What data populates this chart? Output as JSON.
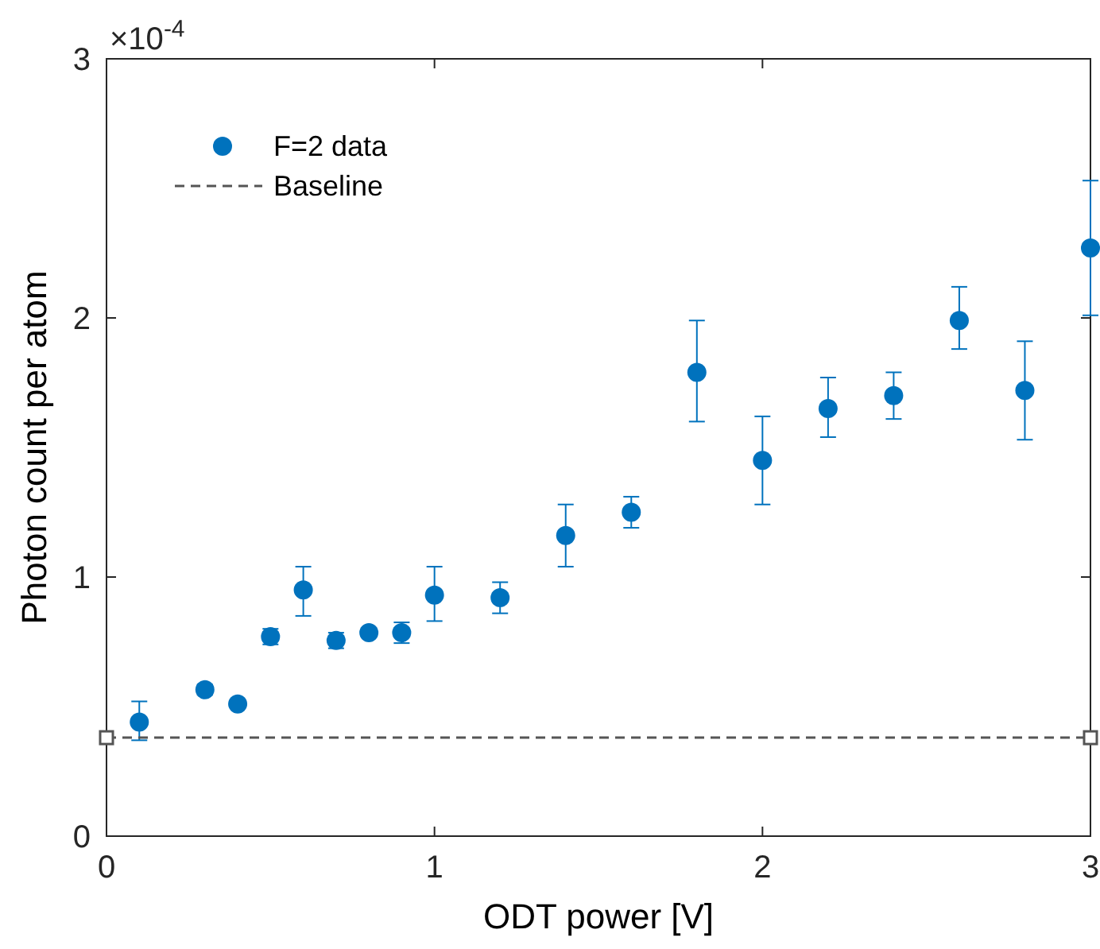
{
  "chart_data": {
    "type": "scatter",
    "xlabel": "ODT power [V]",
    "ylabel": "Photon count per atom",
    "annotations": [
      "×10$^{-4}$"
    ],
    "xlim": [
      0,
      3
    ],
    "xticks": [
      0,
      1,
      2,
      3
    ],
    "ylim": [
      0,
      3
    ],
    "yticks": [
      0,
      1,
      2,
      3
    ],
    "grid": false,
    "legend": "top left",
    "marker": "circle",
    "series": [
      {
        "name": "F=2 data",
        "color": "#0072bd",
        "x": [
          0.1,
          0.3,
          0.4,
          0.5,
          0.6,
          0.7,
          0.8,
          0.9,
          1.0,
          1.2,
          1.4,
          1.6,
          1.8,
          2.0,
          2.2,
          2.4,
          2.6,
          2.8,
          3.0
        ],
        "values": [
          0.44,
          0.565,
          0.51,
          0.77,
          0.95,
          0.755,
          0.785,
          0.785,
          0.93,
          0.92,
          1.16,
          1.25,
          1.79,
          1.45,
          1.65,
          1.7,
          1.99,
          1.72,
          2.27
        ],
        "errors": [
          [
            0.37,
            0.52
          ],
          [
            0.545,
            0.585
          ],
          null,
          [
            0.74,
            0.8
          ],
          [
            0.85,
            1.04
          ],
          [
            0.725,
            0.785
          ],
          null,
          [
            0.745,
            0.825
          ],
          [
            0.83,
            1.04
          ],
          [
            0.86,
            0.98
          ],
          [
            1.04,
            1.28
          ],
          [
            1.19,
            1.31
          ],
          [
            1.6,
            1.99
          ],
          [
            1.28,
            1.62
          ],
          [
            1.54,
            1.77
          ],
          [
            1.61,
            1.79
          ],
          [
            1.88,
            2.12
          ],
          [
            1.53,
            1.91
          ],
          [
            2.01,
            2.53
          ]
        ]
      },
      {
        "name": "Baseline",
        "color": "#555555",
        "type": "line",
        "line_style": "dashed",
        "marker": "square",
        "x": [
          0,
          3
        ],
        "values": [
          0.38,
          0.38
        ]
      }
    ]
  }
}
